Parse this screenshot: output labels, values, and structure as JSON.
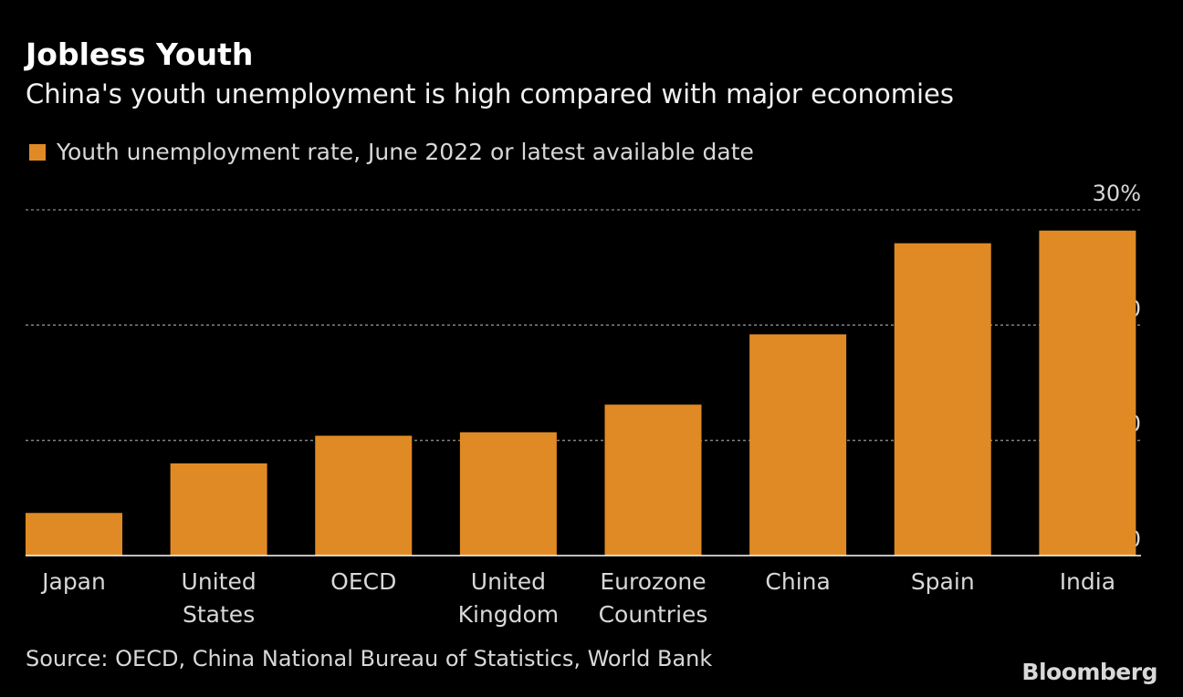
{
  "header": {
    "title": "Jobless Youth",
    "subtitle": "China's youth unemployment is high compared with major economies"
  },
  "footer": {
    "source": "Source: OECD, China National Bureau of Statistics, World Bank",
    "logo": "Bloomberg"
  },
  "colors": {
    "bar": "#E08A25",
    "background": "#000000",
    "grid": "#8a8a8a"
  },
  "chart_data": {
    "type": "bar",
    "title": "Jobless Youth",
    "subtitle": "China's youth unemployment is high compared with major economies",
    "legend": {
      "position": "top-left"
    },
    "categories": [
      [
        "Japan"
      ],
      [
        "United",
        "States"
      ],
      [
        "OECD"
      ],
      [
        "United",
        "Kingdom"
      ],
      [
        "Eurozone",
        "Countries"
      ],
      [
        "China"
      ],
      [
        "Spain"
      ],
      [
        "India"
      ]
    ],
    "series": [
      {
        "name": "Youth unemployment rate, June 2022 or latest available date",
        "values": [
          3.7,
          8.0,
          10.4,
          10.7,
          13.1,
          19.2,
          27.1,
          28.2
        ]
      }
    ],
    "ylim": [
      0,
      30
    ],
    "yticks": [
      0,
      10,
      20,
      30
    ],
    "ytick_labels": [
      "0",
      "10",
      "20",
      "30%"
    ],
    "yaxis_side": "right",
    "grid": true
  }
}
